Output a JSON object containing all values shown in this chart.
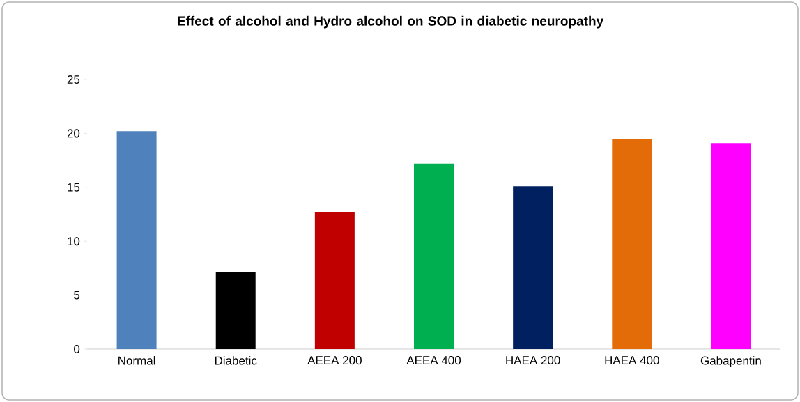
{
  "chart_data": {
    "type": "bar",
    "title": "Effect of alcohol and Hydro alcohol on SOD in diabetic neuropathy",
    "categories": [
      "Normal",
      "Diabetic",
      "AEEA 200",
      "AEEA 400",
      "HAEA 200",
      "HAEA 400",
      "Gabapentin"
    ],
    "values": [
      20.2,
      7.1,
      12.7,
      17.2,
      15.1,
      19.5,
      19.1
    ],
    "colors": [
      "#4f81bd",
      "#000000",
      "#c00000",
      "#00b050",
      "#002060",
      "#e36c09",
      "#ff00ff"
    ],
    "ylim": [
      0,
      25
    ],
    "yticks": [
      0,
      5,
      10,
      15,
      20,
      25
    ],
    "grid": false
  }
}
